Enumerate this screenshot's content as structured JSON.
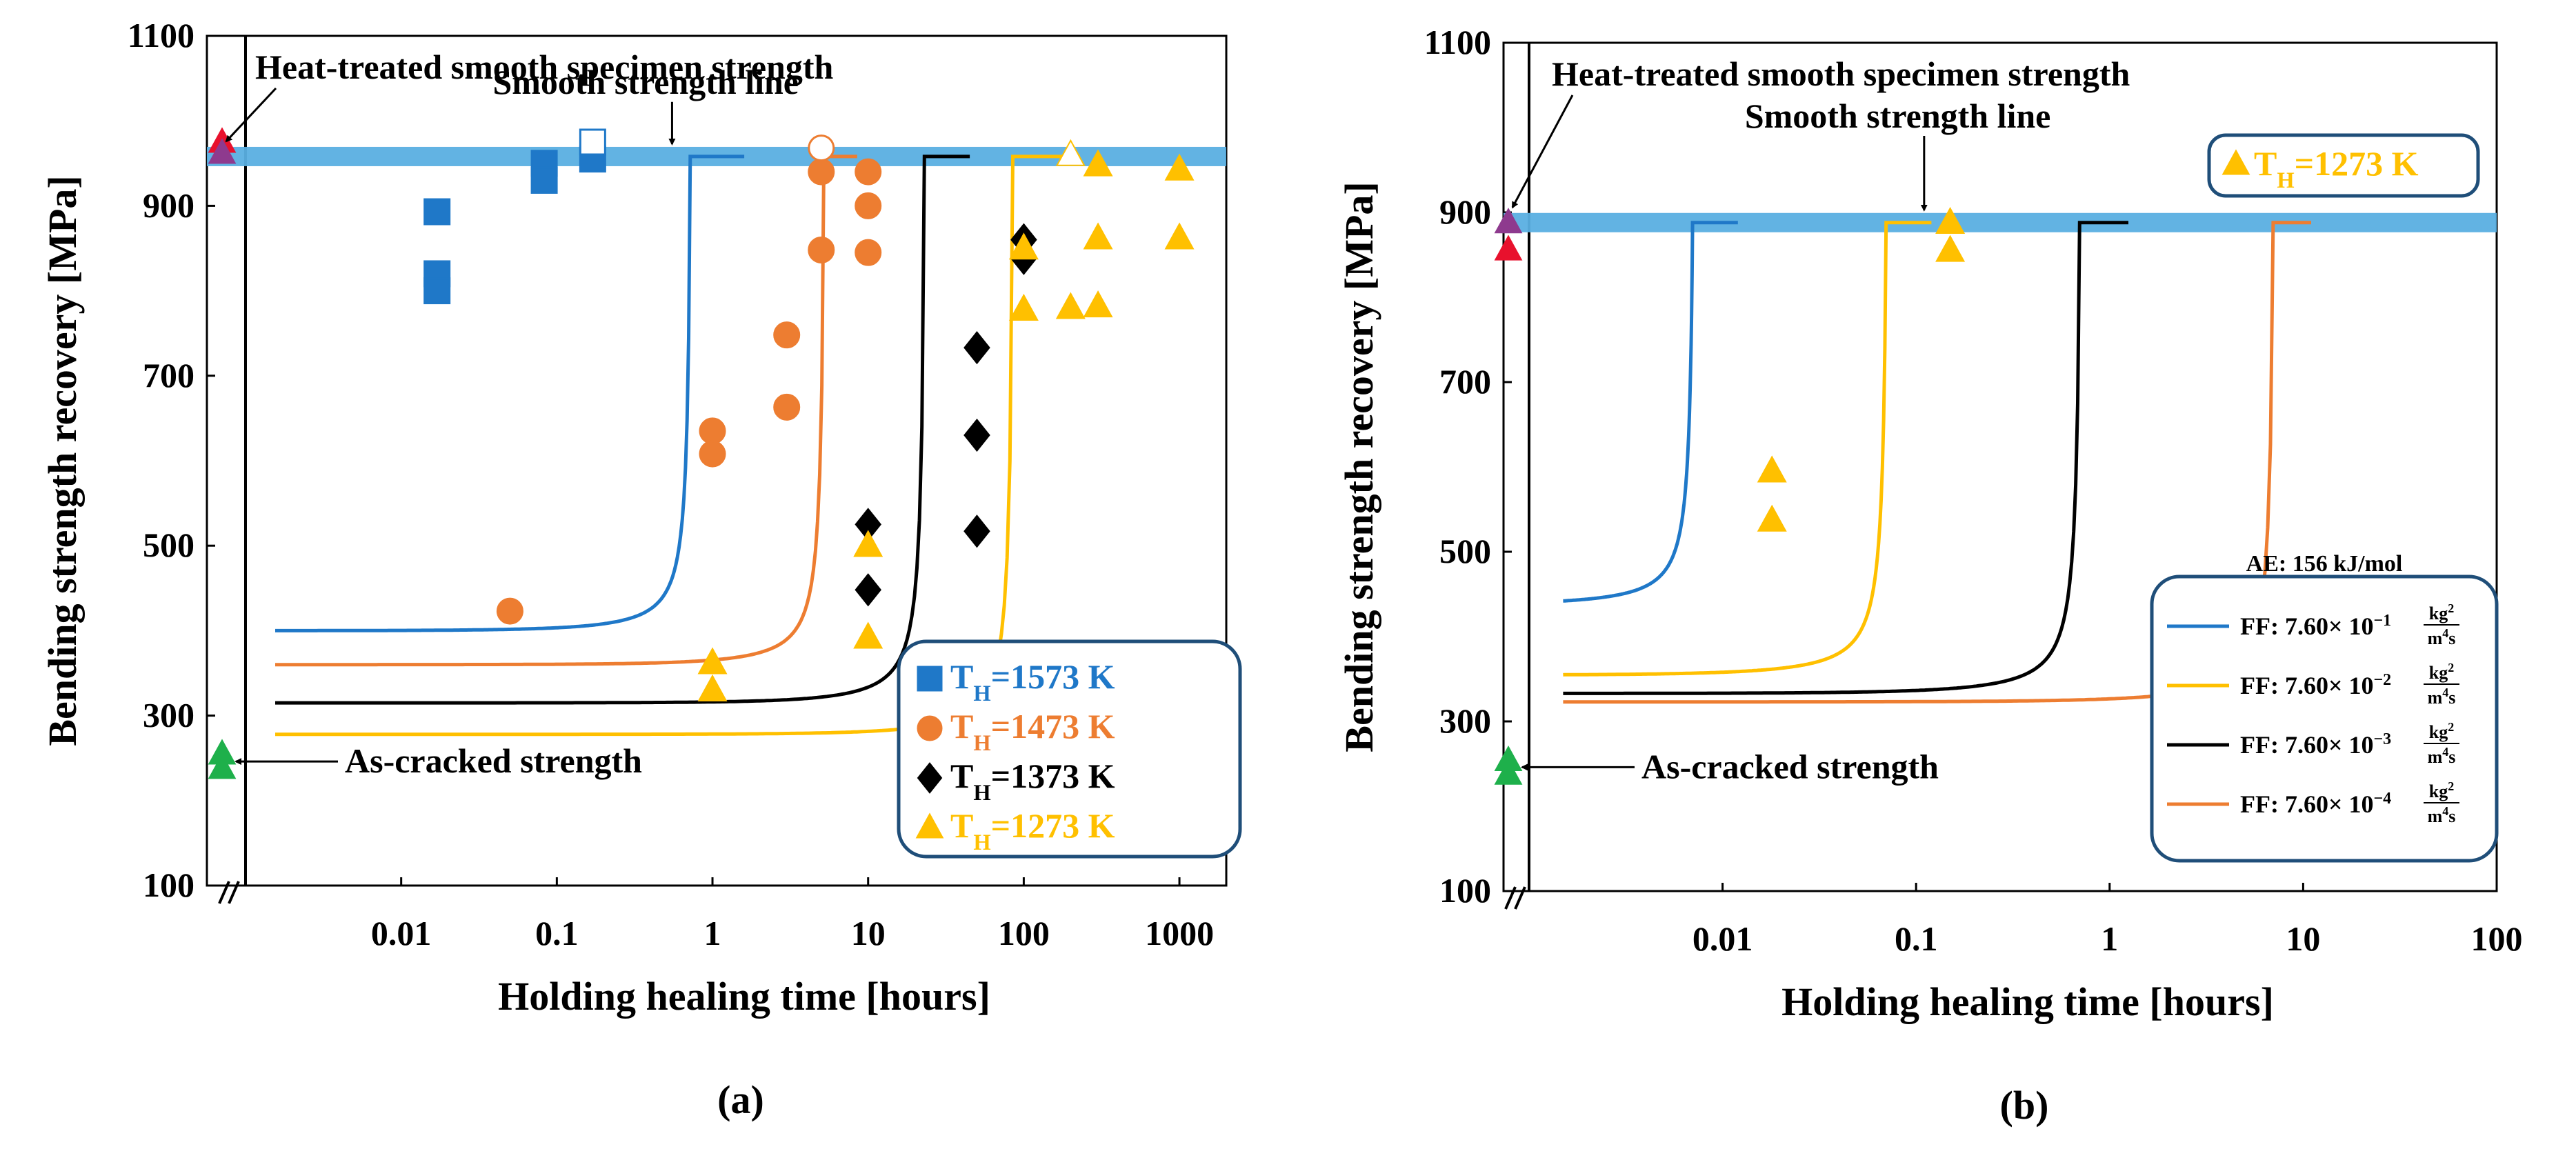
{
  "chart_data": [
    {
      "id": "a",
      "type": "scatter",
      "panel_label": "(a)",
      "xlabel": "Holding healing time [hours]",
      "ylabel": "Bending strength recovery [MPa]",
      "xscale": "log",
      "xlim": [
        0.001,
        2000
      ],
      "ylim": [
        100,
        1100
      ],
      "xticks": [
        0.01,
        0.1,
        1,
        10,
        100,
        1000
      ],
      "xtick_labels": [
        "0.01",
        "0.1",
        "1",
        "10",
        "100",
        "1000"
      ],
      "yticks": [
        100,
        300,
        500,
        700,
        900,
        1100
      ],
      "smooth_strength": 958,
      "annotations": {
        "heat_treated": "Heat-treated smooth specimen strength",
        "smooth_line": "Smooth strength line",
        "as_cracked": "As-cracked strength"
      },
      "legend": {
        "placement": "bottom-right",
        "entries": [
          {
            "prefix": "T",
            "sub": "H",
            "suffix": "=1573 K",
            "color": "#1f78c8",
            "marker": "square"
          },
          {
            "prefix": "T",
            "sub": "H",
            "suffix": "=1473 K",
            "color": "#ed7d31",
            "marker": "circle"
          },
          {
            "prefix": "T",
            "sub": "H",
            "suffix": "=1373 K",
            "color": "#000000",
            "marker": "diamond"
          },
          {
            "prefix": "T",
            "sub": "H",
            "suffix": "=1273 K",
            "color": "#ffc000",
            "marker": "triangle"
          }
        ]
      },
      "baseline_points": [
        {
          "y": 975,
          "color": "#e8112d",
          "marker": "triangle"
        },
        {
          "y": 962,
          "color": "#8e3a8e",
          "marker": "triangle"
        },
        {
          "y": 255,
          "color": "#1eb04b",
          "marker": "triangle"
        },
        {
          "y": 238,
          "color": "#1eb04b",
          "marker": "triangle"
        }
      ],
      "series": [
        {
          "name": "TH=1573 K",
          "color": "#1f78c8",
          "marker": "square",
          "curve_y0": 400,
          "curve_end_x": 0.72,
          "curve_end_x2": 1.6,
          "points": [
            [
              0.017,
              893
            ],
            [
              0.017,
              820
            ],
            [
              0.017,
              800
            ],
            [
              0.083,
              950
            ],
            [
              0.083,
              930
            ],
            [
              0.17,
              955
            ]
          ],
          "open_points": [
            [
              0.17,
              975
            ]
          ]
        },
        {
          "name": "TH=1473 K",
          "color": "#ed7d31",
          "marker": "circle",
          "curve_y0": 360,
          "curve_end_x": 5.2,
          "curve_end_x2": 8.5,
          "points": [
            [
              0.05,
              423
            ],
            [
              1,
              635
            ],
            [
              1,
              608
            ],
            [
              3,
              748
            ],
            [
              3,
              663
            ],
            [
              5,
              940
            ],
            [
              5,
              848
            ],
            [
              10,
              940
            ],
            [
              10,
              900
            ],
            [
              10,
              845
            ]
          ],
          "open_points": [
            [
              5,
              968
            ]
          ]
        },
        {
          "name": "TH=1373 K",
          "color": "#000000",
          "marker": "diamond",
          "curve_y0": 315,
          "curve_end_x": 23,
          "curve_end_x2": 45,
          "points": [
            [
              10,
              525
            ],
            [
              10,
              448
            ],
            [
              50,
              733
            ],
            [
              50,
              630
            ],
            [
              50,
              517
            ],
            [
              100,
              860
            ],
            [
              100,
              838
            ]
          ],
          "open_points": []
        },
        {
          "name": "TH=1273 K",
          "color": "#ffc000",
          "marker": "triangle",
          "curve_y0": 278,
          "curve_end_x": 85,
          "curve_end_x2": 230,
          "points": [
            [
              1,
              362
            ],
            [
              1,
              330
            ],
            [
              10,
              500
            ],
            [
              10,
              392
            ],
            [
              100,
              850
            ],
            [
              100,
              778
            ],
            [
              200,
              780
            ],
            [
              300,
              948
            ],
            [
              300,
              862
            ],
            [
              300,
              782
            ],
            [
              1000,
              943
            ],
            [
              1000,
              862
            ]
          ],
          "open_points": [
            [
              200,
              960
            ]
          ]
        }
      ]
    },
    {
      "id": "b",
      "type": "scatter",
      "panel_label": "(b)",
      "xlabel": "Holding healing time [hours]",
      "ylabel": "Bending strength recovery [MPa]",
      "xscale": "log",
      "xlim": [
        0.001,
        100
      ],
      "ylim": [
        100,
        1100
      ],
      "xticks": [
        0.01,
        0.1,
        1,
        10,
        100
      ],
      "xtick_labels": [
        "0.01",
        "0.1",
        "1",
        "10",
        "100"
      ],
      "yticks": [
        100,
        300,
        500,
        700,
        900,
        1100
      ],
      "smooth_strength": 888,
      "annotations": {
        "heat_treated": "Heat-treated smooth specimen strength",
        "smooth_line": "Smooth strength line",
        "as_cracked": "As-cracked strength",
        "top_legend": {
          "prefix": "T",
          "sub": "H",
          "suffix": "=1273 K",
          "color": "#ffc000"
        }
      },
      "legend": {
        "placement": "bottom-right",
        "title": "AE: 156 kJ/mol",
        "unit_num": "kg",
        "unit_num_exp": "2",
        "unit_den": "m",
        "unit_den_exp": "4",
        "unit_den_suffix": "s",
        "entries": [
          {
            "text": "FF: 7.60× 10",
            "exp": "−1",
            "color": "#1f78c8"
          },
          {
            "text": "FF: 7.60× 10",
            "exp": "−2",
            "color": "#ffc000"
          },
          {
            "text": "FF: 7.60× 10",
            "exp": "−3",
            "color": "#000000"
          },
          {
            "text": "FF: 7.60× 10",
            "exp": "−4",
            "color": "#ed7d31"
          }
        ]
      },
      "baseline_points": [
        {
          "y": 888,
          "color": "#8e3a8e",
          "marker": "triangle"
        },
        {
          "y": 856,
          "color": "#e8112d",
          "marker": "triangle"
        },
        {
          "y": 254,
          "color": "#1eb04b",
          "marker": "triangle"
        },
        {
          "y": 238,
          "color": "#1eb04b",
          "marker": "triangle"
        }
      ],
      "data_points": {
        "color": "#ffc000",
        "marker": "triangle",
        "points": [
          [
            0.018,
            595
          ],
          [
            0.018,
            537
          ],
          [
            0.15,
            888
          ],
          [
            0.15,
            855
          ]
        ]
      },
      "series": [
        {
          "name": "FF: 7.60×10^-1",
          "color": "#1f78c8",
          "curve_x0": 0.0015,
          "curve_y0": 442,
          "curve_end_x": 0.007,
          "curve_end_x2": 0.012
        },
        {
          "name": "FF: 7.60×10^-2",
          "color": "#ffc000",
          "curve_x0": 0.0015,
          "curve_y0": 355,
          "curve_end_x": 0.07,
          "curve_end_x2": 0.12
        },
        {
          "name": "FF: 7.60×10^-3",
          "color": "#000000",
          "curve_x0": 0.0015,
          "curve_y0": 333,
          "curve_end_x": 0.7,
          "curve_end_x2": 1.25
        },
        {
          "name": "FF: 7.60×10^-4",
          "color": "#ed7d31",
          "curve_x0": 0.0015,
          "curve_y0": 323,
          "curve_end_x": 7.0,
          "curve_end_x2": 11
        }
      ]
    }
  ]
}
